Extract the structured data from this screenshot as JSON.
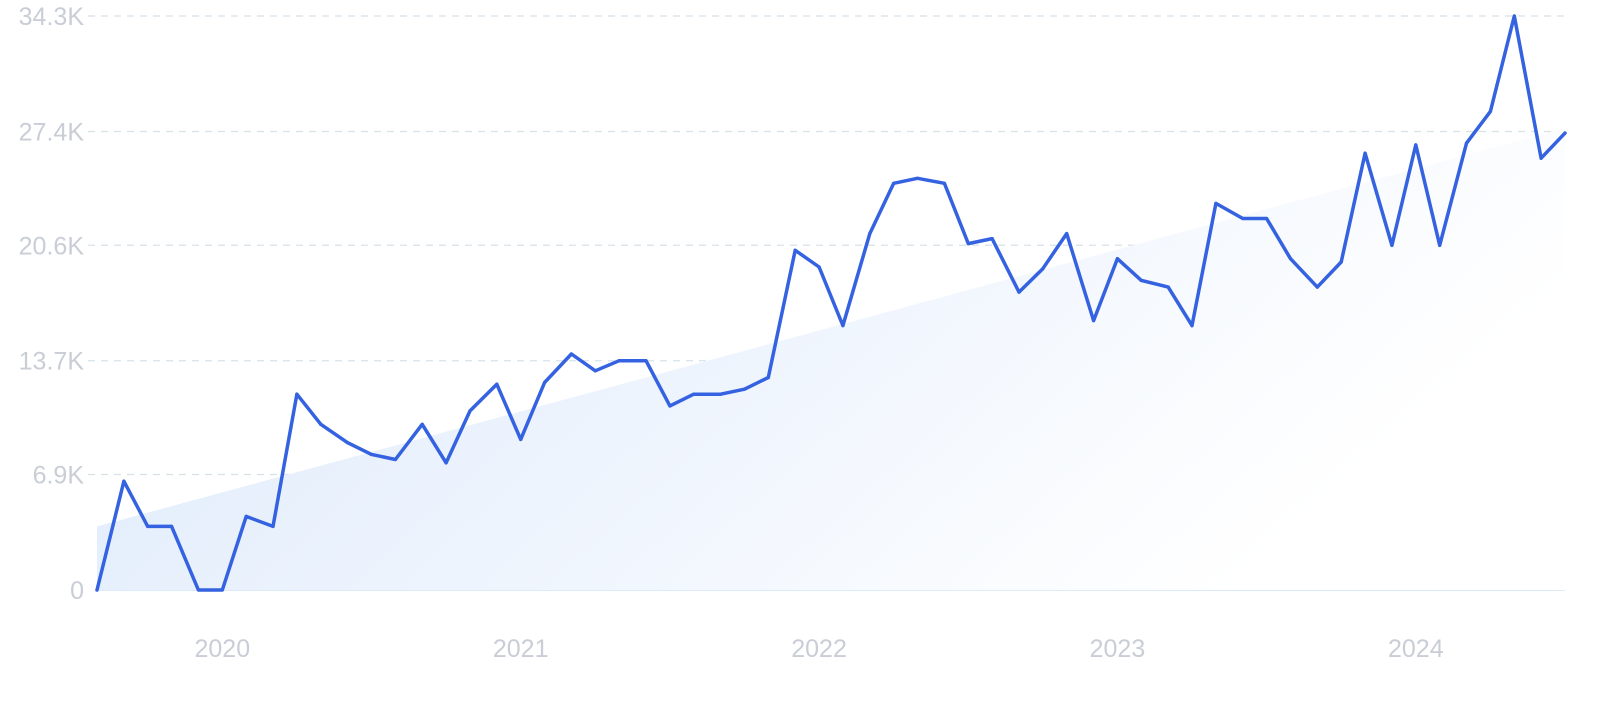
{
  "chart_data": {
    "type": "line",
    "title": "",
    "xlabel": "",
    "ylabel": "",
    "y_ticks": [
      "0",
      "6.9K",
      "13.7K",
      "20.6K",
      "27.4K",
      "34.3K"
    ],
    "y_tick_values": [
      0,
      6900,
      13700,
      20600,
      27400,
      34300
    ],
    "ylim": [
      0,
      34300
    ],
    "x_ticks": [
      "2020",
      "2021",
      "2022",
      "2023",
      "2024"
    ],
    "x_tick_values": [
      2020.0,
      2021.0,
      2022.0,
      2023.0,
      2024.0
    ],
    "xlim": [
      2019.58,
      2024.5
    ],
    "grid": "horizontal dashed",
    "legend": "none",
    "colors": {
      "line": "#3462e0",
      "area_start": "#dbe8fb",
      "area_end": "#ffffff",
      "grid": "#d6e2ea",
      "tick_text": "#c9cdd6",
      "baseline": "#c5dff4"
    },
    "series": [
      {
        "x": [
          2019.58,
          2019.67,
          2019.75,
          2019.83,
          2019.92,
          2020.0,
          2020.08,
          2020.17,
          2020.25,
          2020.33,
          2020.42,
          2020.5,
          2020.58,
          2020.67,
          2020.75,
          2020.83,
          2020.92,
          2021.0,
          2021.08,
          2021.17,
          2021.25,
          2021.33,
          2021.42,
          2021.5,
          2021.58,
          2021.67,
          2021.75,
          2021.83,
          2021.92,
          2022.0,
          2022.08,
          2022.17,
          2022.25,
          2022.33,
          2022.42,
          2022.5,
          2022.58,
          2022.67,
          2022.75,
          2022.83,
          2022.92,
          2023.0,
          2023.08,
          2023.17,
          2023.25,
          2023.33,
          2023.42,
          2023.5,
          2023.58,
          2023.67,
          2023.75,
          2023.83,
          2023.92,
          2024.0,
          2024.08,
          2024.17,
          2024.25,
          2024.33,
          2024.42,
          2024.5
        ],
        "values": [
          0,
          6500,
          3800,
          3800,
          0,
          0,
          4400,
          3800,
          11700,
          9900,
          8800,
          8100,
          7800,
          9900,
          7600,
          10700,
          12300,
          9000,
          12400,
          14100,
          13100,
          13700,
          13700,
          11000,
          11700,
          11700,
          12000,
          12700,
          20300,
          19300,
          15800,
          21300,
          24300,
          24600,
          24300,
          20700,
          21000,
          17800,
          19200,
          21300,
          16100,
          19800,
          18500,
          18100,
          15800,
          23100,
          22200,
          22200,
          19800,
          18100,
          19600,
          26100,
          20600,
          26600,
          20600,
          26700,
          28600,
          34300,
          25800,
          27300
        ]
      }
    ],
    "trend": {
      "x": [
        2019.58,
        2024.5
      ],
      "values": [
        3800,
        27600
      ]
    }
  }
}
